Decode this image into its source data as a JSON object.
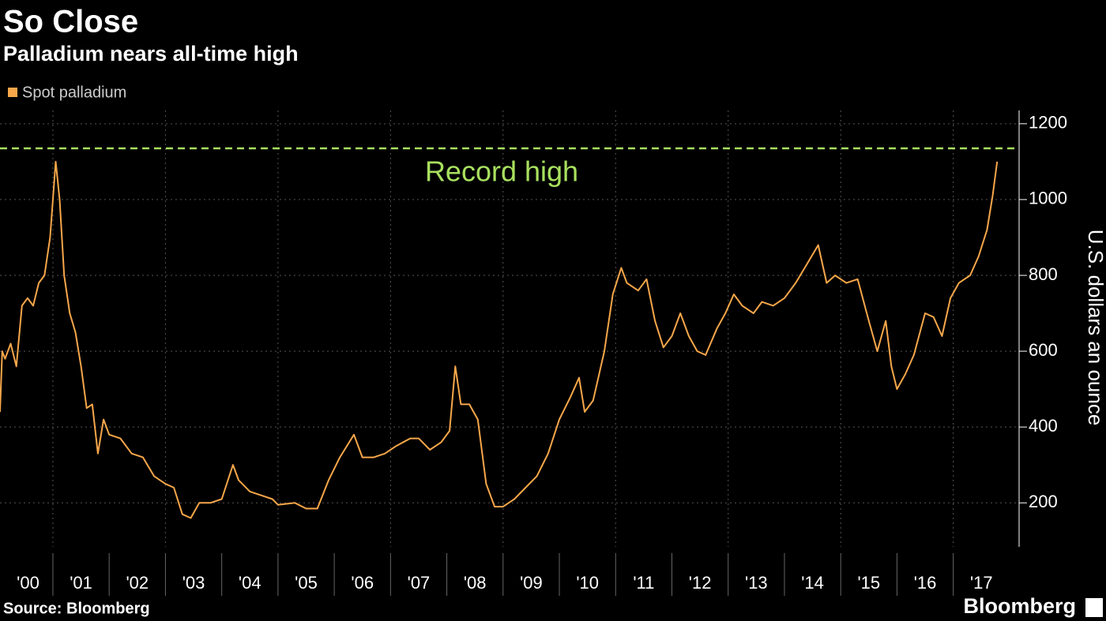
{
  "chart_data": {
    "type": "line",
    "title": "So Close",
    "subtitle": "Palladium nears all-time high",
    "y_axis_label": "U.S. dollars an ounce",
    "source": "Source: Bloomberg",
    "logo": "Bloomberg",
    "legend": "top-left",
    "grid": true,
    "reference_line": {
      "value": 1135,
      "label": "Record high",
      "color": "#a8e05f"
    },
    "xlim": [
      2000.06,
      2018.17
    ],
    "ylim": [
      84,
      1235
    ],
    "yticks": [
      200,
      400,
      600,
      800,
      1000,
      1200
    ],
    "xticks": [
      {
        "value": 2000,
        "label": "'00"
      },
      {
        "value": 2001,
        "label": "'01"
      },
      {
        "value": 2002,
        "label": "'02"
      },
      {
        "value": 2003,
        "label": "'03"
      },
      {
        "value": 2004,
        "label": "'04"
      },
      {
        "value": 2005,
        "label": "'05"
      },
      {
        "value": 2006,
        "label": "'06"
      },
      {
        "value": 2007,
        "label": "'07"
      },
      {
        "value": 2008,
        "label": "'08"
      },
      {
        "value": 2009,
        "label": "'09"
      },
      {
        "value": 2010,
        "label": "'10"
      },
      {
        "value": 2011,
        "label": "'11"
      },
      {
        "value": 2012,
        "label": "'12"
      },
      {
        "value": 2013,
        "label": "'13"
      },
      {
        "value": 2014,
        "label": "'14"
      },
      {
        "value": 2015,
        "label": "'15"
      },
      {
        "value": 2016,
        "label": "'16"
      },
      {
        "value": 2017,
        "label": "'17"
      }
    ],
    "x": [
      2000.06,
      2000.1,
      2000.15,
      2000.25,
      2000.35,
      2000.45,
      2000.55,
      2000.65,
      2000.75,
      2000.85,
      2000.95,
      2001.05,
      2001.12,
      2001.2,
      2001.3,
      2001.4,
      2001.5,
      2001.6,
      2001.7,
      2001.8,
      2001.9,
      2002.0,
      2002.2,
      2002.4,
      2002.6,
      2002.8,
      2003.0,
      2003.15,
      2003.3,
      2003.45,
      2003.6,
      2003.8,
      2004.0,
      2004.2,
      2004.3,
      2004.5,
      2004.7,
      2004.9,
      2005.0,
      2005.3,
      2005.5,
      2005.7,
      2005.9,
      2006.1,
      2006.35,
      2006.5,
      2006.7,
      2006.9,
      2007.1,
      2007.35,
      2007.5,
      2007.7,
      2007.9,
      2008.05,
      2008.15,
      2008.25,
      2008.4,
      2008.55,
      2008.7,
      2008.85,
      2009.0,
      2009.2,
      2009.4,
      2009.6,
      2009.8,
      2010.0,
      2010.2,
      2010.35,
      2010.45,
      2010.6,
      2010.8,
      2010.95,
      2011.1,
      2011.2,
      2011.4,
      2011.55,
      2011.7,
      2011.85,
      2012.0,
      2012.15,
      2012.3,
      2012.45,
      2012.6,
      2012.8,
      2012.95,
      2013.1,
      2013.25,
      2013.45,
      2013.6,
      2013.8,
      2014.0,
      2014.2,
      2014.4,
      2014.6,
      2014.75,
      2014.9,
      2015.1,
      2015.3,
      2015.5,
      2015.65,
      2015.8,
      2015.9,
      2016.0,
      2016.15,
      2016.3,
      2016.5,
      2016.65,
      2016.8,
      2016.95,
      2017.1,
      2017.3,
      2017.45,
      2017.6,
      2017.7,
      2017.78
    ],
    "series": [
      {
        "name": "Spot palladium",
        "color": "#f7a74a",
        "values": [
          440,
          600,
          580,
          620,
          560,
          720,
          740,
          720,
          780,
          800,
          900,
          1100,
          1000,
          800,
          700,
          650,
          560,
          450,
          460,
          330,
          420,
          380,
          370,
          330,
          320,
          270,
          250,
          240,
          170,
          160,
          200,
          200,
          210,
          300,
          260,
          230,
          220,
          210,
          195,
          200,
          185,
          185,
          260,
          320,
          380,
          320,
          320,
          330,
          350,
          370,
          370,
          340,
          360,
          390,
          560,
          460,
          460,
          420,
          250,
          190,
          190,
          210,
          240,
          270,
          330,
          420,
          480,
          530,
          440,
          470,
          600,
          750,
          820,
          780,
          760,
          790,
          680,
          610,
          640,
          700,
          640,
          600,
          590,
          660,
          700,
          750,
          720,
          700,
          730,
          720,
          740,
          780,
          830,
          880,
          780,
          800,
          780,
          790,
          680,
          600,
          680,
          560,
          500,
          540,
          590,
          700,
          690,
          640,
          740,
          780,
          800,
          850,
          920,
          1010,
          1100
        ]
      }
    ]
  }
}
